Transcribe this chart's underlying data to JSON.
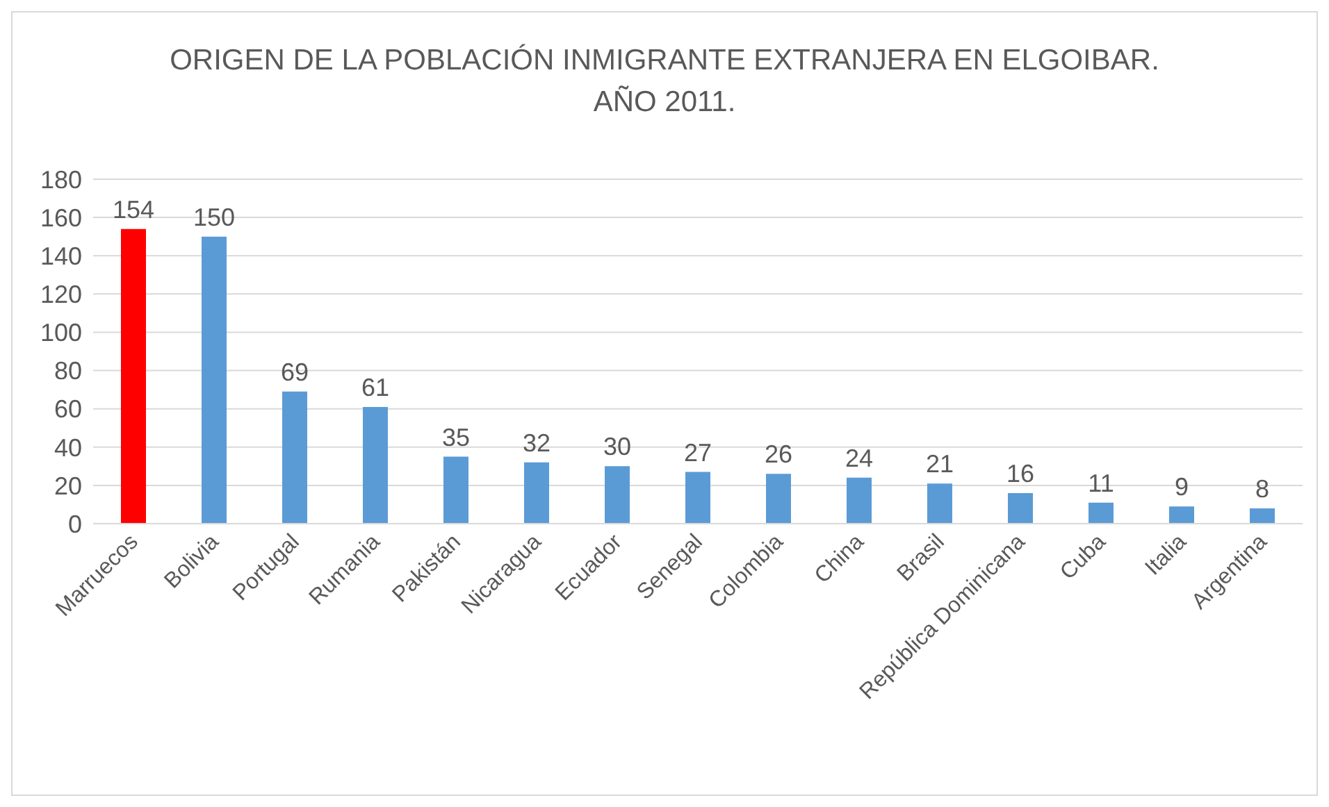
{
  "chart_data": {
    "type": "bar",
    "title": "ORIGEN DE LA POBLACIÓN INMIGRANTE EXTRANJERA EN ELGOIBAR.\nAÑO 2011.",
    "categories": [
      "Marruecos",
      "Bolivia",
      "Portugal",
      "Rumania",
      "Pakistán",
      "Nicaragua",
      "Ecuador",
      "Senegal",
      "Colombia",
      "China",
      "Brasil",
      "República Dominicana",
      "Cuba",
      "Italia",
      "Argentina"
    ],
    "values": [
      154,
      150,
      69,
      61,
      35,
      32,
      30,
      27,
      26,
      24,
      21,
      16,
      11,
      9,
      8
    ],
    "colors": [
      "#ff0000",
      "#5b9bd5",
      "#5b9bd5",
      "#5b9bd5",
      "#5b9bd5",
      "#5b9bd5",
      "#5b9bd5",
      "#5b9bd5",
      "#5b9bd5",
      "#5b9bd5",
      "#5b9bd5",
      "#5b9bd5",
      "#5b9bd5",
      "#5b9bd5",
      "#5b9bd5"
    ],
    "ylim": [
      0,
      180
    ],
    "yticks": [
      0,
      20,
      40,
      60,
      80,
      100,
      120,
      140,
      160,
      180
    ],
    "grid": "y",
    "data_labels": true
  }
}
